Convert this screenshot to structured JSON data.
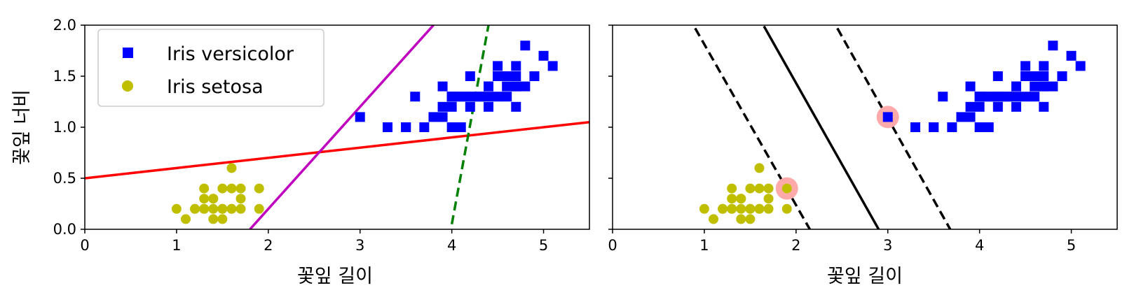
{
  "colors": {
    "versicolor": "#0000ff",
    "setosa": "#bfbf00",
    "line_red": "#ff0000",
    "line_magenta": "#bf00bf",
    "line_green_dashed": "#008000",
    "svm_lines": "#000000",
    "support_vector_highlight": "#ffaaaa"
  },
  "chart_data": [
    {
      "type": "scatter",
      "xlabel": "꽃잎 길이",
      "ylabel": "꽃잎 너비",
      "xlim": [
        0,
        5.5
      ],
      "ylim": [
        0,
        2.0
      ],
      "xticks": [
        "0",
        "1",
        "2",
        "3",
        "4",
        "5"
      ],
      "yticks": [
        "0.0",
        "0.5",
        "1.0",
        "1.5",
        "2.0"
      ],
      "legend": {
        "placement": "upper-left",
        "entries": [
          {
            "label": "Iris versicolor",
            "marker": "square",
            "series": "versicolor"
          },
          {
            "label": "Iris setosa",
            "marker": "circle",
            "series": "setosa"
          }
        ]
      },
      "series": [
        {
          "name": "Iris versicolor",
          "key": "versicolor",
          "points": [
            [
              4.7,
              1.4
            ],
            [
              4.5,
              1.5
            ],
            [
              4.9,
              1.5
            ],
            [
              4.0,
              1.3
            ],
            [
              4.6,
              1.5
            ],
            [
              4.5,
              1.3
            ],
            [
              4.7,
              1.6
            ],
            [
              3.3,
              1.0
            ],
            [
              4.6,
              1.3
            ],
            [
              3.9,
              1.4
            ],
            [
              3.5,
              1.0
            ],
            [
              4.2,
              1.5
            ],
            [
              4.0,
              1.0
            ],
            [
              4.7,
              1.4
            ],
            [
              3.6,
              1.3
            ],
            [
              4.4,
              1.4
            ],
            [
              4.5,
              1.5
            ],
            [
              4.1,
              1.0
            ],
            [
              4.5,
              1.5
            ],
            [
              3.9,
              1.1
            ],
            [
              4.8,
              1.8
            ],
            [
              4.0,
              1.3
            ],
            [
              4.9,
              1.5
            ],
            [
              4.7,
              1.2
            ],
            [
              4.3,
              1.3
            ],
            [
              4.4,
              1.4
            ],
            [
              4.8,
              1.4
            ],
            [
              5.0,
              1.7
            ],
            [
              4.5,
              1.5
            ],
            [
              3.5,
              1.0
            ],
            [
              3.8,
              1.1
            ],
            [
              3.7,
              1.0
            ],
            [
              3.9,
              1.2
            ],
            [
              5.1,
              1.6
            ],
            [
              4.5,
              1.5
            ],
            [
              4.5,
              1.6
            ],
            [
              4.7,
              1.5
            ],
            [
              4.4,
              1.3
            ],
            [
              4.1,
              1.3
            ],
            [
              4.0,
              1.3
            ],
            [
              4.4,
              1.2
            ],
            [
              4.6,
              1.4
            ],
            [
              4.0,
              1.2
            ],
            [
              3.3,
              1.0
            ],
            [
              4.2,
              1.3
            ],
            [
              4.2,
              1.2
            ],
            [
              4.2,
              1.3
            ],
            [
              4.3,
              1.3
            ],
            [
              3.0,
              1.1
            ],
            [
              4.1,
              1.3
            ]
          ]
        },
        {
          "name": "Iris setosa",
          "key": "setosa",
          "points": [
            [
              1.4,
              0.2
            ],
            [
              1.3,
              0.2
            ],
            [
              1.5,
              0.2
            ],
            [
              1.7,
              0.4
            ],
            [
              1.4,
              0.3
            ],
            [
              1.5,
              0.1
            ],
            [
              1.5,
              0.2
            ],
            [
              1.6,
              0.2
            ],
            [
              1.1,
              0.1
            ],
            [
              1.2,
              0.2
            ],
            [
              1.3,
              0.4
            ],
            [
              1.4,
              0.3
            ],
            [
              1.7,
              0.3
            ],
            [
              1.0,
              0.2
            ],
            [
              1.7,
              0.2
            ],
            [
              1.9,
              0.2
            ],
            [
              1.6,
              0.4
            ],
            [
              1.3,
              0.3
            ],
            [
              1.6,
              0.2
            ],
            [
              1.9,
              0.4
            ],
            [
              1.6,
              0.6
            ],
            [
              1.4,
              0.1
            ],
            [
              1.2,
              0.2
            ],
            [
              1.3,
              0.2
            ],
            [
              1.5,
              0.4
            ]
          ]
        }
      ],
      "lines": [
        {
          "key": "line_red",
          "style": "solid",
          "points": [
            [
              0,
              0.5
            ],
            [
              5.5,
              1.05
            ]
          ]
        },
        {
          "key": "line_magenta",
          "style": "solid",
          "points": [
            [
              1.8,
              0.0
            ],
            [
              3.8,
              2.0
            ]
          ]
        },
        {
          "key": "line_green_dashed",
          "style": "dashed",
          "points": [
            [
              4.0,
              0.05
            ],
            [
              4.4,
              2.0
            ]
          ]
        }
      ]
    },
    {
      "type": "scatter",
      "xlabel": "꽃잎 길이",
      "xlim": [
        0,
        5.5
      ],
      "ylim": [
        0,
        2.0
      ],
      "xticks": [
        "0",
        "1",
        "2",
        "3",
        "4",
        "5"
      ],
      "series": [
        {
          "name": "Iris versicolor",
          "key": "versicolor",
          "same_points_as_left": true
        },
        {
          "name": "Iris setosa",
          "key": "setosa",
          "same_points_as_left": true
        }
      ],
      "support_vectors": [
        [
          1.9,
          0.4
        ],
        [
          3.0,
          1.1
        ]
      ],
      "lines": [
        {
          "key": "svm_lines",
          "style": "dashed",
          "points": [
            [
              0.9,
              1.97
            ],
            [
              2.15,
              0.0
            ]
          ]
        },
        {
          "key": "svm_lines",
          "style": "solid",
          "points": [
            [
              1.65,
              1.99
            ],
            [
              2.9,
              0.0
            ]
          ]
        },
        {
          "key": "svm_lines",
          "style": "dashed",
          "points": [
            [
              2.45,
              1.97
            ],
            [
              3.68,
              0.0
            ]
          ]
        }
      ]
    }
  ]
}
